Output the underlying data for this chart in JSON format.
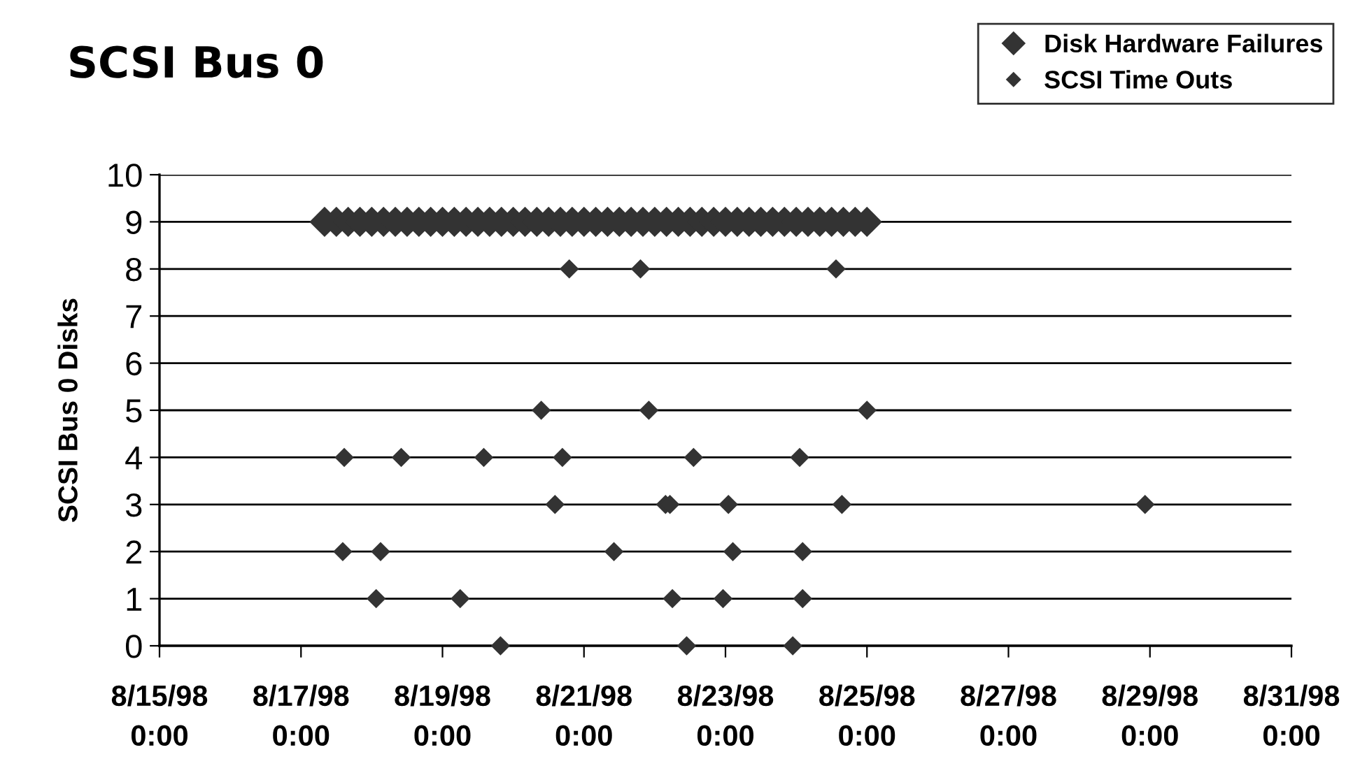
{
  "chart_data": {
    "type": "scatter",
    "title": "SCSI Bus 0",
    "ylabel": "SCSI Bus 0 Disks",
    "series": [
      {
        "name": "Disk Hardware Failures",
        "color": "#333333",
        "x": [
          "1998-08-17T08:00",
          "1998-08-17T12:00",
          "1998-08-17T16:00",
          "1998-08-17T20:00",
          "1998-08-18T00:00",
          "1998-08-18T04:00",
          "1998-08-18T08:00",
          "1998-08-18T12:00",
          "1998-08-18T16:00",
          "1998-08-18T20:00",
          "1998-08-19T00:00",
          "1998-08-19T04:00",
          "1998-08-19T08:00",
          "1998-08-19T12:00",
          "1998-08-19T16:00",
          "1998-08-19T20:00",
          "1998-08-20T00:00",
          "1998-08-20T04:00",
          "1998-08-20T08:00",
          "1998-08-20T12:00",
          "1998-08-20T16:00",
          "1998-08-20T20:00",
          "1998-08-21T00:00",
          "1998-08-21T04:00",
          "1998-08-21T08:00",
          "1998-08-21T12:00",
          "1998-08-21T16:00",
          "1998-08-21T20:00",
          "1998-08-22T00:00",
          "1998-08-22T04:00",
          "1998-08-22T08:00",
          "1998-08-22T12:00",
          "1998-08-22T16:00",
          "1998-08-22T20:00",
          "1998-08-23T00:00",
          "1998-08-23T04:00",
          "1998-08-23T08:00",
          "1998-08-23T12:00",
          "1998-08-23T16:00",
          "1998-08-23T20:00",
          "1998-08-24T00:00",
          "1998-08-24T04:00",
          "1998-08-24T08:00",
          "1998-08-24T12:00",
          "1998-08-24T16:00",
          "1998-08-24T20:00",
          "1998-08-25T00:00"
        ],
        "values": [
          9,
          9,
          9,
          9,
          9,
          9,
          9,
          9,
          9,
          9,
          9,
          9,
          9,
          9,
          9,
          9,
          9,
          9,
          9,
          9,
          9,
          9,
          9,
          9,
          9,
          9,
          9,
          9,
          9,
          9,
          9,
          9,
          9,
          9,
          9,
          9,
          9,
          9,
          9,
          9,
          9,
          9,
          9,
          9,
          9,
          9,
          9
        ]
      },
      {
        "name": "SCSI Time Outs",
        "color": "#333333",
        "x": [
          "1998-08-20T19:00",
          "1998-08-21T19:10",
          "1998-08-24T13:30",
          "1998-08-20T09:30",
          "1998-08-21T22:00",
          "1998-08-25T00:00",
          "1998-08-17T14:40",
          "1998-08-18T10:00",
          "1998-08-19T14:00",
          "1998-08-20T16:40",
          "1998-08-22T13:10",
          "1998-08-24T01:10",
          "1998-08-20T14:10",
          "1998-08-22T03:40",
          "1998-08-22T05:10",
          "1998-08-23T01:00",
          "1998-08-24T15:30",
          "1998-08-28T22:20",
          "1998-08-17T14:10",
          "1998-08-18T03:00",
          "1998-08-21T10:10",
          "1998-08-23T02:30",
          "1998-08-24T02:10",
          "1998-08-18T01:30",
          "1998-08-19T06:00",
          "1998-08-22T06:00",
          "1998-08-22T23:10",
          "1998-08-24T02:10",
          "1998-08-19T19:40",
          "1998-08-22T10:50",
          "1998-08-23T22:50"
        ],
        "values": [
          8,
          8,
          8,
          5,
          5,
          5,
          4,
          4,
          4,
          4,
          4,
          4,
          3,
          3,
          3,
          3,
          3,
          3,
          2,
          2,
          2,
          2,
          2,
          1,
          1,
          1,
          1,
          1,
          0,
          0,
          0
        ]
      }
    ],
    "marker": "diamond",
    "grid": "y",
    "legend": "top right",
    "xlim": [
      "1998-08-15",
      "1998-08-31"
    ],
    "xticks": [
      {
        "value": "1998-08-15",
        "label": "8/15/98\n0:00"
      },
      {
        "value": "1998-08-17",
        "label": "8/17/98\n0:00"
      },
      {
        "value": "1998-08-19",
        "label": "8/19/98\n0:00"
      },
      {
        "value": "1998-08-21",
        "label": "8/21/98\n0:00"
      },
      {
        "value": "1998-08-23",
        "label": "8/23/98\n0:00"
      },
      {
        "value": "1998-08-25",
        "label": "8/25/98\n0:00"
      },
      {
        "value": "1998-08-27",
        "label": "8/27/98\n0:00"
      },
      {
        "value": "1998-08-29",
        "label": "8/29/98\n0:00"
      },
      {
        "value": "1998-08-31",
        "label": "8/31/98\n0:00"
      }
    ],
    "ylim": [
      0,
      10
    ],
    "yticks": [
      0,
      1,
      2,
      3,
      4,
      5,
      6,
      7,
      8,
      9,
      10
    ]
  }
}
